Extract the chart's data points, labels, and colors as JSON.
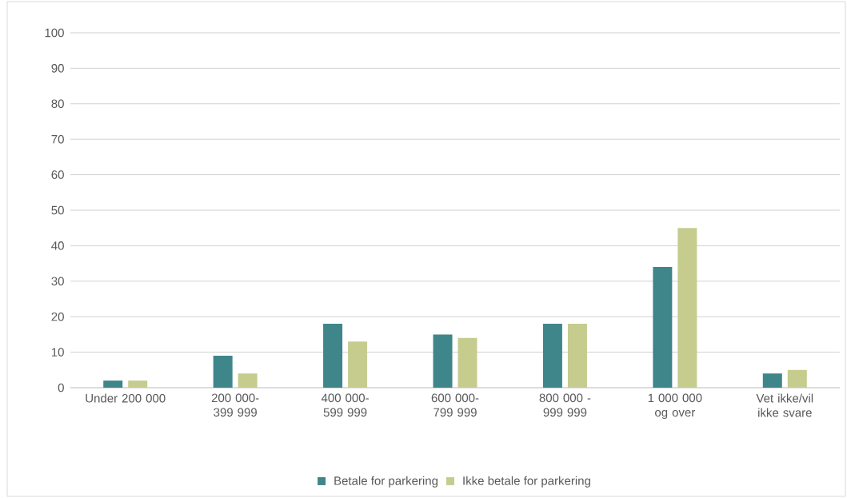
{
  "chart_data": {
    "type": "bar",
    "categories": [
      "Under 200 000",
      "200 000-399 999",
      "400 000-599 999",
      "600 000-799 999",
      "800 000 - 999 999",
      "1 000 000 og over",
      "Vet ikke/vil ikke svare"
    ],
    "series": [
      {
        "name": "Betale for parkering",
        "color": "#3f868b",
        "values": [
          2,
          9,
          18,
          15,
          18,
          34,
          4
        ]
      },
      {
        "name": "Ikke betale for parkering",
        "color": "#c5cc8e",
        "values": [
          2,
          4,
          13,
          14,
          18,
          45,
          5
        ]
      }
    ],
    "ylim": [
      0,
      100
    ],
    "yticks": [
      0,
      10,
      20,
      30,
      40,
      50,
      60,
      70,
      80,
      90,
      100
    ],
    "grid": "y",
    "legend": "bottom"
  }
}
